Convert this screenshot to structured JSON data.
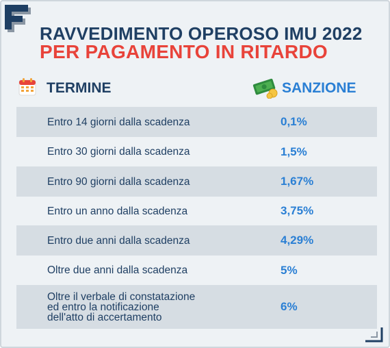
{
  "header": {
    "title_line1": "RAVVEDIMENTO OPEROSO IMU 2022",
    "title_line2": "PER PAGAMENTO IN RITARDO",
    "logo_letter": "F",
    "column_termine": "TERMINE",
    "column_sanzione": "SANZIONE",
    "icons": [
      "calendar-icon",
      "money-icon"
    ]
  },
  "colors": {
    "navy": "#1f3f63",
    "red": "#e8433a",
    "blue": "#2a7fd4",
    "row_shade": "#d6dde3",
    "background": "#eef2f5"
  },
  "rows": [
    {
      "termine": "Entro 14 giorni dalla scadenza",
      "sanzione": "0,1%"
    },
    {
      "termine": "Entro 30 giorni dalla scadenza",
      "sanzione": "1,5%"
    },
    {
      "termine": "Entro 90 giorni dalla scadenza",
      "sanzione": "1,67%"
    },
    {
      "termine": "Entro un anno dalla scadenza",
      "sanzione": "3,75%"
    },
    {
      "termine": "Entro due anni dalla scadenza",
      "sanzione": "4,29%"
    },
    {
      "termine": "Oltre due anni dalla scadenza",
      "sanzione": "5%"
    },
    {
      "termine": "Oltre il verbale di constatazione\ned entro la notificazione\ndell'atto di accertamento",
      "sanzione": "6%"
    }
  ]
}
